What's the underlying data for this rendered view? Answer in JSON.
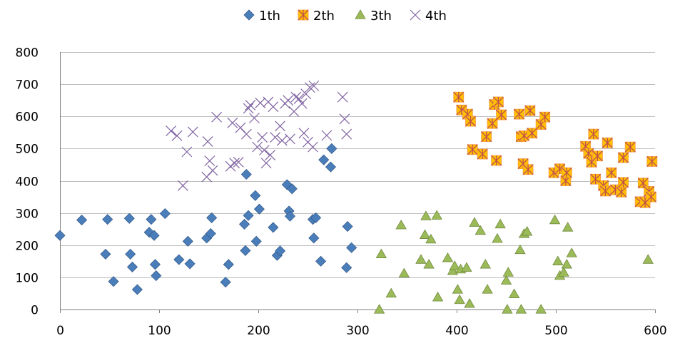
{
  "chart_data": {
    "type": "scatter",
    "title": "",
    "xlabel": "",
    "ylabel": "",
    "xlim": [
      0,
      600
    ],
    "ylim": [
      0,
      800
    ],
    "x_ticks": [
      0,
      100,
      200,
      300,
      400,
      500,
      600
    ],
    "y_ticks": [
      0,
      100,
      200,
      300,
      400,
      500,
      600,
      700,
      800
    ],
    "grid": "horizontal",
    "legend_position": "top",
    "series": [
      {
        "name": "1th",
        "marker": "diamond",
        "color": "#4a7ebb",
        "points": [
          [
            0,
            230
          ],
          [
            22,
            278
          ],
          [
            46,
            172
          ],
          [
            48,
            280
          ],
          [
            54,
            87
          ],
          [
            70,
            283
          ],
          [
            71,
            172
          ],
          [
            73,
            132
          ],
          [
            78,
            62
          ],
          [
            90,
            240
          ],
          [
            92,
            280
          ],
          [
            95,
            230
          ],
          [
            96,
            140
          ],
          [
            97,
            105
          ],
          [
            106,
            298
          ],
          [
            120,
            155
          ],
          [
            129,
            212
          ],
          [
            131,
            142
          ],
          [
            148,
            222
          ],
          [
            152,
            236
          ],
          [
            153,
            285
          ],
          [
            167,
            85
          ],
          [
            170,
            140
          ],
          [
            186,
            265
          ],
          [
            187,
            183
          ],
          [
            188,
            420
          ],
          [
            190,
            292
          ],
          [
            197,
            354
          ],
          [
            198,
            212
          ],
          [
            201,
            312
          ],
          [
            215,
            255
          ],
          [
            219,
            168
          ],
          [
            222,
            182
          ],
          [
            229,
            388
          ],
          [
            231,
            306
          ],
          [
            232,
            290
          ],
          [
            234,
            375
          ],
          [
            255,
            280
          ],
          [
            256,
            222
          ],
          [
            258,
            285
          ],
          [
            263,
            150
          ],
          [
            266,
            465
          ],
          [
            273,
            443
          ],
          [
            274,
            500
          ],
          [
            289,
            130
          ],
          [
            290,
            258
          ],
          [
            294,
            192
          ]
        ]
      },
      {
        "name": "2th",
        "marker": "star",
        "color": "#f79646",
        "points": [
          [
            402,
            660
          ],
          [
            405,
            620
          ],
          [
            411,
            607
          ],
          [
            414,
            585
          ],
          [
            416,
            497
          ],
          [
            426,
            483
          ],
          [
            430,
            537
          ],
          [
            436,
            578
          ],
          [
            438,
            637
          ],
          [
            440,
            463
          ],
          [
            442,
            645
          ],
          [
            445,
            605
          ],
          [
            463,
            607
          ],
          [
            465,
            537
          ],
          [
            467,
            453
          ],
          [
            468,
            540
          ],
          [
            472,
            435
          ],
          [
            474,
            618
          ],
          [
            476,
            548
          ],
          [
            485,
            575
          ],
          [
            489,
            598
          ],
          [
            498,
            425
          ],
          [
            504,
            437
          ],
          [
            510,
            400
          ],
          [
            511,
            425
          ],
          [
            530,
            507
          ],
          [
            533,
            485
          ],
          [
            536,
            458
          ],
          [
            538,
            545
          ],
          [
            540,
            405
          ],
          [
            542,
            477
          ],
          [
            548,
            385
          ],
          [
            550,
            368
          ],
          [
            552,
            518
          ],
          [
            556,
            425
          ],
          [
            560,
            372
          ],
          [
            566,
            365
          ],
          [
            568,
            395
          ],
          [
            568,
            472
          ],
          [
            575,
            505
          ],
          [
            585,
            335
          ],
          [
            588,
            393
          ],
          [
            590,
            332
          ],
          [
            594,
            367
          ],
          [
            596,
            350
          ],
          [
            597,
            460
          ]
        ]
      },
      {
        "name": "3th",
        "marker": "triangle",
        "color": "#9bbb59",
        "points": [
          [
            322,
            0
          ],
          [
            324,
            172
          ],
          [
            334,
            50
          ],
          [
            344,
            262
          ],
          [
            347,
            112
          ],
          [
            364,
            155
          ],
          [
            368,
            232
          ],
          [
            369,
            290
          ],
          [
            372,
            140
          ],
          [
            374,
            218
          ],
          [
            380,
            292
          ],
          [
            381,
            38
          ],
          [
            391,
            160
          ],
          [
            396,
            120
          ],
          [
            398,
            135
          ],
          [
            401,
            62
          ],
          [
            403,
            30
          ],
          [
            404,
            125
          ],
          [
            410,
            130
          ],
          [
            413,
            18
          ],
          [
            418,
            270
          ],
          [
            424,
            245
          ],
          [
            429,
            140
          ],
          [
            431,
            62
          ],
          [
            441,
            220
          ],
          [
            444,
            265
          ],
          [
            450,
            90
          ],
          [
            451,
            0
          ],
          [
            452,
            115
          ],
          [
            458,
            48
          ],
          [
            464,
            185
          ],
          [
            465,
            0
          ],
          [
            468,
            235
          ],
          [
            471,
            242
          ],
          [
            485,
            0
          ],
          [
            499,
            278
          ],
          [
            502,
            150
          ],
          [
            504,
            105
          ],
          [
            508,
            115
          ],
          [
            511,
            140
          ],
          [
            512,
            255
          ],
          [
            516,
            175
          ],
          [
            593,
            155
          ]
        ]
      },
      {
        "name": "4th",
        "marker": "x",
        "color": "#8064a2",
        "points": [
          [
            112,
            555
          ],
          [
            118,
            540
          ],
          [
            124,
            385
          ],
          [
            128,
            490
          ],
          [
            134,
            552
          ],
          [
            148,
            412
          ],
          [
            149,
            522
          ],
          [
            151,
            462
          ],
          [
            154,
            432
          ],
          [
            158,
            598
          ],
          [
            172,
            445
          ],
          [
            174,
            580
          ],
          [
            176,
            455
          ],
          [
            180,
            458
          ],
          [
            182,
            565
          ],
          [
            188,
            545
          ],
          [
            190,
            625
          ],
          [
            192,
            635
          ],
          [
            196,
            595
          ],
          [
            199,
            505
          ],
          [
            202,
            642
          ],
          [
            204,
            535
          ],
          [
            206,
            495
          ],
          [
            208,
            455
          ],
          [
            210,
            645
          ],
          [
            212,
            480
          ],
          [
            215,
            630
          ],
          [
            217,
            535
          ],
          [
            222,
            570
          ],
          [
            224,
            525
          ],
          [
            227,
            640
          ],
          [
            230,
            650
          ],
          [
            232,
            530
          ],
          [
            236,
            615
          ],
          [
            238,
            660
          ],
          [
            241,
            655
          ],
          [
            244,
            640
          ],
          [
            246,
            548
          ],
          [
            248,
            670
          ],
          [
            250,
            520
          ],
          [
            252,
            690
          ],
          [
            255,
            505
          ],
          [
            256,
            695
          ],
          [
            269,
            541
          ],
          [
            285,
            660
          ],
          [
            287,
            592
          ],
          [
            289,
            545
          ]
        ]
      }
    ]
  }
}
